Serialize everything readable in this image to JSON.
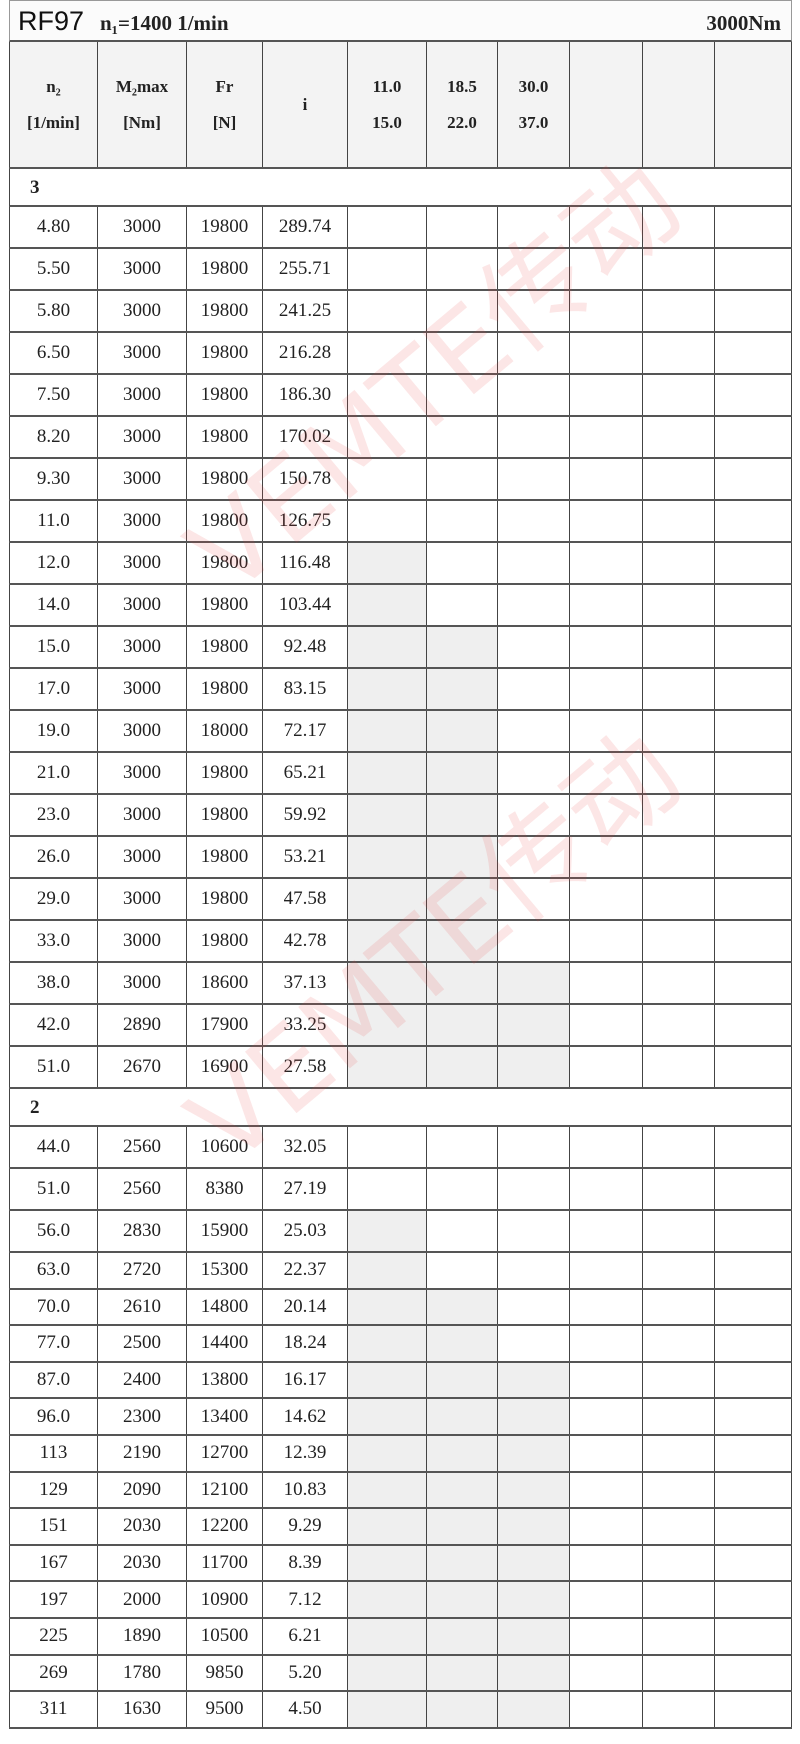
{
  "title": {
    "model": "RF97",
    "input_speed": "n₁=1400 1/min",
    "torque": "3000Nm"
  },
  "headers": [
    {
      "line1": "n₂",
      "line2": "[1/min]"
    },
    {
      "line1": "M₂max",
      "line2": "[Nm]"
    },
    {
      "line1": "Fr",
      "line2": "[N]"
    },
    {
      "line1": "i",
      "line2": ""
    },
    {
      "line1": "11.0",
      "line2": "15.0"
    },
    {
      "line1": "18.5",
      "line2": "22.0"
    },
    {
      "line1": "30.0",
      "line2": "37.0"
    },
    {
      "line1": "",
      "line2": ""
    },
    {
      "line1": "",
      "line2": ""
    },
    {
      "line1": "",
      "line2": ""
    }
  ],
  "groups": [
    {
      "label": "3",
      "rows": [
        {
          "n2": "4.80",
          "m2": "3000",
          "fr": "19800",
          "i": "289.74",
          "shaded": []
        },
        {
          "n2": "5.50",
          "m2": "3000",
          "fr": "19800",
          "i": "255.71",
          "shaded": []
        },
        {
          "n2": "5.80",
          "m2": "3000",
          "fr": "19800",
          "i": "241.25",
          "shaded": []
        },
        {
          "n2": "6.50",
          "m2": "3000",
          "fr": "19800",
          "i": "216.28",
          "shaded": []
        },
        {
          "n2": "7.50",
          "m2": "3000",
          "fr": "19800",
          "i": "186.30",
          "shaded": []
        },
        {
          "n2": "8.20",
          "m2": "3000",
          "fr": "19800",
          "i": "170.02",
          "shaded": []
        },
        {
          "n2": "9.30",
          "m2": "3000",
          "fr": "19800",
          "i": "150.78",
          "shaded": []
        },
        {
          "n2": "11.0",
          "m2": "3000",
          "fr": "19800",
          "i": "126.75",
          "shaded": []
        },
        {
          "n2": "12.0",
          "m2": "3000",
          "fr": "19800",
          "i": "116.48",
          "shaded": [
            4
          ]
        },
        {
          "n2": "14.0",
          "m2": "3000",
          "fr": "19800",
          "i": "103.44",
          "shaded": [
            4
          ]
        },
        {
          "n2": "15.0",
          "m2": "3000",
          "fr": "19800",
          "i": "92.48",
          "shaded": [
            4,
            5
          ]
        },
        {
          "n2": "17.0",
          "m2": "3000",
          "fr": "19800",
          "i": "83.15",
          "shaded": [
            4,
            5
          ]
        },
        {
          "n2": "19.0",
          "m2": "3000",
          "fr": "18000",
          "i": "72.17",
          "shaded": [
            4,
            5
          ]
        },
        {
          "n2": "21.0",
          "m2": "3000",
          "fr": "19800",
          "i": "65.21",
          "shaded": [
            4,
            5
          ]
        },
        {
          "n2": "23.0",
          "m2": "3000",
          "fr": "19800",
          "i": "59.92",
          "shaded": [
            4,
            5
          ]
        },
        {
          "n2": "26.0",
          "m2": "3000",
          "fr": "19800",
          "i": "53.21",
          "shaded": [
            4,
            5
          ]
        },
        {
          "n2": "29.0",
          "m2": "3000",
          "fr": "19800",
          "i": "47.58",
          "shaded": [
            4,
            5
          ]
        },
        {
          "n2": "33.0",
          "m2": "3000",
          "fr": "19800",
          "i": "42.78",
          "shaded": [
            4,
            5
          ]
        },
        {
          "n2": "38.0",
          "m2": "3000",
          "fr": "18600",
          "i": "37.13",
          "shaded": [
            4,
            5,
            6
          ]
        },
        {
          "n2": "42.0",
          "m2": "2890",
          "fr": "17900",
          "i": "33.25",
          "shaded": [
            4,
            5,
            6
          ]
        },
        {
          "n2": "51.0",
          "m2": "2670",
          "fr": "16900",
          "i": "27.58",
          "shaded": [
            4,
            5,
            6
          ]
        }
      ]
    },
    {
      "label": "2",
      "rows": [
        {
          "n2": "44.0",
          "m2": "2560",
          "fr": "10600",
          "i": "32.05",
          "shaded": []
        },
        {
          "n2": "51.0",
          "m2": "2560",
          "fr": "8380",
          "i": "27.19",
          "shaded": []
        },
        {
          "n2": "56.0",
          "m2": "2830",
          "fr": "15900",
          "i": "25.03",
          "shaded": [
            4
          ]
        },
        {
          "n2": "63.0",
          "m2": "2720",
          "fr": "15300",
          "i": "22.37",
          "shaded": [
            4
          ]
        },
        {
          "n2": "70.0",
          "m2": "2610",
          "fr": "14800",
          "i": "20.14",
          "shaded": [
            4,
            5
          ]
        },
        {
          "n2": "77.0",
          "m2": "2500",
          "fr": "14400",
          "i": "18.24",
          "shaded": [
            4,
            5
          ]
        },
        {
          "n2": "87.0",
          "m2": "2400",
          "fr": "13800",
          "i": "16.17",
          "shaded": [
            4,
            5,
            6
          ]
        },
        {
          "n2": "96.0",
          "m2": "2300",
          "fr": "13400",
          "i": "14.62",
          "shaded": [
            4,
            5,
            6
          ]
        },
        {
          "n2": "113",
          "m2": "2190",
          "fr": "12700",
          "i": "12.39",
          "shaded": [
            4,
            5,
            6
          ]
        },
        {
          "n2": "129",
          "m2": "2090",
          "fr": "12100",
          "i": "10.83",
          "shaded": [
            4,
            5,
            6
          ]
        },
        {
          "n2": "151",
          "m2": "2030",
          "fr": "12200",
          "i": "9.29",
          "shaded": [
            4,
            5,
            6
          ]
        },
        {
          "n2": "167",
          "m2": "2030",
          "fr": "11700",
          "i": "8.39",
          "shaded": [
            4,
            5,
            6
          ]
        },
        {
          "n2": "197",
          "m2": "2000",
          "fr": "10900",
          "i": "7.12",
          "shaded": [
            4,
            5,
            6
          ]
        },
        {
          "n2": "225",
          "m2": "1890",
          "fr": "10500",
          "i": "6.21",
          "shaded": [
            4,
            5,
            6
          ]
        },
        {
          "n2": "269",
          "m2": "1780",
          "fr": "9850",
          "i": "5.20",
          "shaded": [
            4,
            5,
            6
          ]
        },
        {
          "n2": "311",
          "m2": "1630",
          "fr": "9500",
          "i": "4.50",
          "shaded": [
            4,
            5,
            6
          ]
        }
      ]
    }
  ],
  "watermark": "VEMTE传动",
  "colors": {
    "shade": "#efefef",
    "watermark": "#eb3c3c"
  }
}
